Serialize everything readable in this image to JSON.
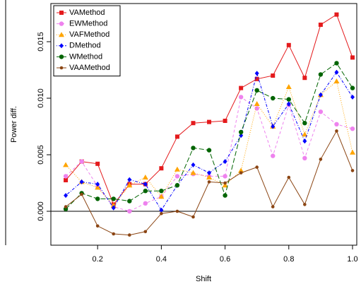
{
  "chart_data": {
    "type": "line",
    "x_label": "Shift",
    "y_label": "Power diff.",
    "x": [
      0.1,
      0.15,
      0.2,
      0.25,
      0.3,
      0.35,
      0.4,
      0.45,
      0.5,
      0.55,
      0.6,
      0.65,
      0.7,
      0.75,
      0.8,
      0.85,
      0.9,
      0.95,
      1.0
    ],
    "series": [
      {
        "name": "VAMethod",
        "color": "#e41a1c",
        "marker": "square",
        "dash": "",
        "values": [
          0.00275,
          0.0044,
          0.0042,
          0.0006,
          0.0024,
          0.0024,
          0.0038,
          0.0066,
          0.0078,
          0.0079,
          0.008,
          0.0109,
          0.0117,
          0.012,
          0.0147,
          0.0118,
          0.0165,
          0.0174,
          0.0136
        ]
      },
      {
        "name": "EWMethod",
        "color": "#ee82ee",
        "marker": "circle",
        "dash": "4 3",
        "values": [
          0.0031,
          0.0044,
          0.0022,
          0.0004,
          0.0,
          0.0007,
          0.0013,
          0.0031,
          0.0033,
          0.0031,
          0.0031,
          0.0101,
          0.0091,
          0.0049,
          0.0094,
          0.0047,
          0.0088,
          0.0077,
          0.0073
        ]
      },
      {
        "name": "VAFMethod",
        "color": "#ffa500",
        "marker": "triangle",
        "dash": "1 2",
        "values": [
          0.0041,
          0.0026,
          0.0021,
          0.0005,
          0.0023,
          0.003,
          0.0013,
          0.0037,
          0.0034,
          0.003,
          0.0023,
          0.0036,
          0.0095,
          0.0075,
          0.011,
          0.0068,
          0.0103,
          0.0115,
          0.0052
        ]
      },
      {
        "name": "DMethod",
        "color": "#0000ff",
        "marker": "diamond",
        "dash": "1 2 4 2",
        "values": [
          0.0014,
          0.0026,
          0.0024,
          0.0003,
          0.0028,
          0.0024,
          0.0001,
          0.0023,
          0.0041,
          0.0034,
          0.0044,
          0.0067,
          0.0122,
          0.0075,
          0.0095,
          0.0062,
          0.0103,
          0.0123,
          0.0101
        ]
      },
      {
        "name": "WMethod",
        "color": "#006400",
        "marker": "circle",
        "dash": "7 3",
        "values": [
          0.0002,
          0.0016,
          0.0011,
          0.0011,
          0.0009,
          0.0018,
          0.0018,
          0.0023,
          0.0056,
          0.0054,
          0.0014,
          0.007,
          0.0107,
          0.01,
          0.0099,
          0.0078,
          0.0121,
          0.0131,
          0.0109
        ]
      },
      {
        "name": "VAAMethod",
        "color": "#8b4513",
        "marker": "dot",
        "dash": "",
        "values": [
          0.0004,
          0.0015,
          -0.0013,
          -0.002,
          -0.0021,
          -0.0018,
          -0.0002,
          0.0,
          -0.0005,
          0.0026,
          0.0025,
          0.0034,
          0.0039,
          0.0004,
          0.003,
          0.0006,
          0.0046,
          0.0071,
          0.0036
        ]
      }
    ],
    "xlim": [
      0.0533,
      1.0133
    ],
    "ylim": [
      -0.003,
      0.018375
    ],
    "xticks": [
      0.2,
      0.4,
      0.6,
      0.8,
      {
        "value": 1.0,
        "label": "1.0"
      }
    ],
    "yticks": [
      {
        "value": 0.0,
        "label": "0.000"
      },
      {
        "value": 0.005,
        "label": "0.005"
      },
      {
        "value": 0.01,
        "label": "0.010"
      },
      {
        "value": 0.015,
        "label": "0.015"
      }
    ],
    "reference_line": 0,
    "legend": "top-left"
  }
}
